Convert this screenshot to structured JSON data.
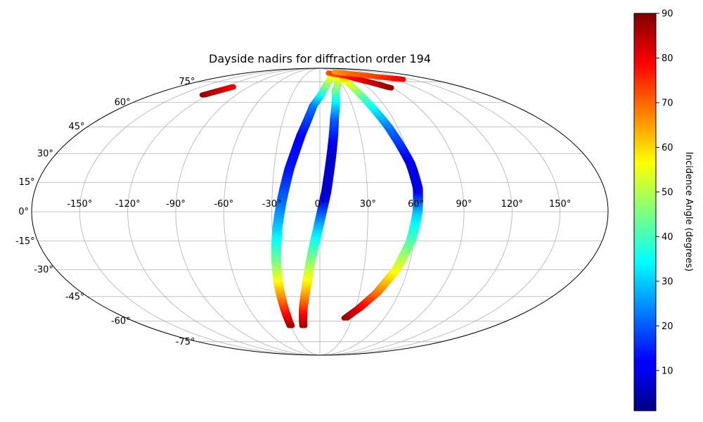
{
  "chart_data": {
    "type": "scatter",
    "projection": "mollweide",
    "title": "Dayside nadirs for diffraction order 194",
    "grid": true,
    "x_ticks": [
      "-150°",
      "-120°",
      "-90°",
      "-60°",
      "-30°",
      "0°",
      "30°",
      "60°",
      "90°",
      "120°",
      "150°"
    ],
    "y_ticks": [
      "-75°",
      "-60°",
      "-45°",
      "-30°",
      "-15°",
      "0°",
      "15°",
      "30°",
      "45°",
      "60°",
      "75°"
    ],
    "colorbar": {
      "label": "Incidence Angle (degrees)",
      "colormap": "jet",
      "range": [
        1,
        90
      ],
      "ticks": [
        "10",
        "20",
        "30",
        "40",
        "50",
        "60",
        "70",
        "80",
        "90"
      ]
    },
    "tracks": [
      {
        "points": [
          {
            "lon": -30,
            "lat": -63,
            "inc": 88
          },
          {
            "lon": -30,
            "lat": -52,
            "inc": 76
          },
          {
            "lon": -30,
            "lat": -40,
            "inc": 62
          },
          {
            "lon": -29,
            "lat": -25,
            "inc": 45
          },
          {
            "lon": -27,
            "lat": -10,
            "inc": 32
          },
          {
            "lon": -24,
            "lat": 5,
            "inc": 22
          },
          {
            "lon": -20,
            "lat": 22,
            "inc": 14
          },
          {
            "lon": -14,
            "lat": 40,
            "inc": 12
          },
          {
            "lon": -6,
            "lat": 58,
            "inc": 22
          },
          {
            "lon": 8,
            "lat": 72,
            "inc": 45
          },
          {
            "lon": 25,
            "lat": 82,
            "inc": 58
          }
        ]
      },
      {
        "points": [
          {
            "lon": -17,
            "lat": -63,
            "inc": 88
          },
          {
            "lon": -14,
            "lat": -52,
            "inc": 76
          },
          {
            "lon": -10,
            "lat": -40,
            "inc": 62
          },
          {
            "lon": -6,
            "lat": -25,
            "inc": 47
          },
          {
            "lon": -1,
            "lat": -8,
            "inc": 30
          },
          {
            "lon": 4,
            "lat": 10,
            "inc": 8
          },
          {
            "lon": 8,
            "lat": 30,
            "inc": 8
          },
          {
            "lon": 12,
            "lat": 50,
            "inc": 20
          },
          {
            "lon": 18,
            "lat": 68,
            "inc": 42
          },
          {
            "lon": 35,
            "lat": 82,
            "inc": 58
          }
        ]
      },
      {
        "points": [
          {
            "lon": 24,
            "lat": -58,
            "inc": 88
          },
          {
            "lon": 33,
            "lat": -52,
            "inc": 82
          },
          {
            "lon": 43,
            "lat": -43,
            "inc": 70
          },
          {
            "lon": 52,
            "lat": -30,
            "inc": 56
          },
          {
            "lon": 58,
            "lat": -15,
            "inc": 42
          },
          {
            "lon": 61,
            "lat": 0,
            "inc": 30
          },
          {
            "lon": 62,
            "lat": 12,
            "inc": 10
          },
          {
            "lon": 60,
            "lat": 25,
            "inc": 10
          },
          {
            "lon": 53,
            "lat": 45,
            "inc": 22
          },
          {
            "lon": 44,
            "lat": 65,
            "inc": 42
          },
          {
            "lon": 38,
            "lat": 78,
            "inc": 60
          }
        ]
      },
      {
        "points": [
          {
            "lon": 22,
            "lat": 83,
            "inc": 72
          },
          {
            "lon": 50,
            "lat": 80,
            "inc": 76
          },
          {
            "lon": 75,
            "lat": 74,
            "inc": 84
          },
          {
            "lon": 88,
            "lat": 70,
            "inc": 88
          }
        ]
      },
      {
        "points": [
          {
            "lon": 40,
            "lat": 84,
            "inc": 65
          },
          {
            "lon": 75,
            "lat": 82,
            "inc": 70
          },
          {
            "lon": 110,
            "lat": 79,
            "inc": 74
          },
          {
            "lon": 135,
            "lat": 77,
            "inc": 80
          }
        ]
      },
      {
        "points": [
          {
            "lon": -125,
            "lat": 65,
            "inc": 88
          },
          {
            "lon": -110,
            "lat": 71,
            "inc": 80
          }
        ]
      }
    ]
  }
}
